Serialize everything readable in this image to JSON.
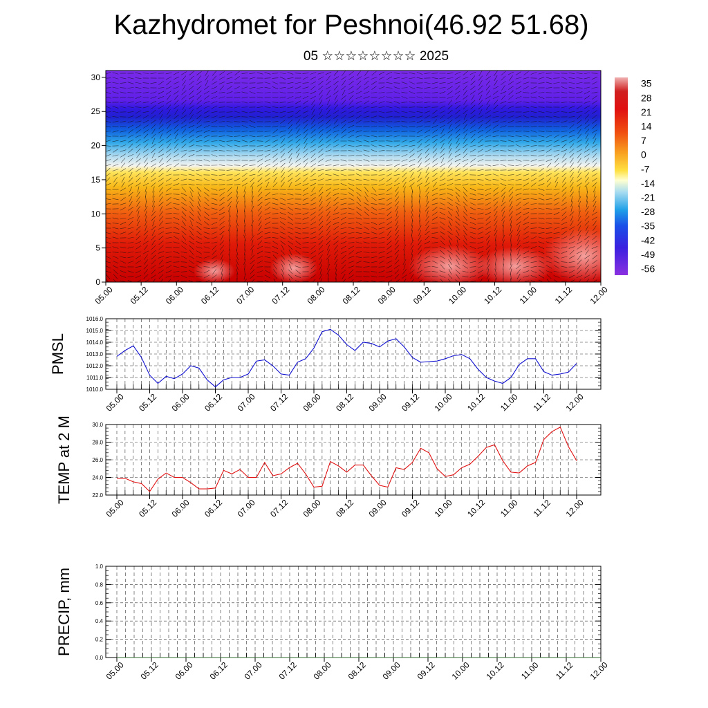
{
  "title": "Kazhydromet for Peshnoi(46.92 51.68)",
  "subtitle": "05 ☆☆☆☆☆☆☆☆ 2025",
  "time_ticks": [
    "05.00",
    "05.12",
    "06.00",
    "06.12",
    "07.00",
    "07.12",
    "08.00",
    "08.12",
    "09.00",
    "09.12",
    "10.00",
    "10.12",
    "11.00",
    "11.12",
    "12.00"
  ],
  "colors": {
    "pmsl_line": "#1010d0",
    "temp_line": "#e01010",
    "precip_line": "#2a6a2a",
    "grid": "#333333"
  },
  "chart_data": [
    {
      "type": "heatmap",
      "title": "",
      "x_ticks": [
        "05.00",
        "05.12",
        "06.00",
        "06.12",
        "07.00",
        "07.12",
        "08.00",
        "08.12",
        "09.00",
        "09.12",
        "10.00",
        "10.12",
        "11.00",
        "11.12",
        "12.00"
      ],
      "y_ticks": [
        "0",
        "5",
        "10",
        "15",
        "20",
        "25",
        "30"
      ],
      "ylim": [
        0,
        31
      ],
      "colorbar_labels": [
        "35",
        "28",
        "21",
        "14",
        "7",
        "0",
        "-7",
        "-14",
        "-21",
        "-28",
        "-35",
        "-42",
        "-49",
        "-56"
      ],
      "overlay": "wind vectors"
    },
    {
      "type": "line",
      "ylabel": "PMSL",
      "ylim": [
        1010,
        1016
      ],
      "y_ticks": [
        "1010.0",
        "1011.0",
        "1012.0",
        "1013.0",
        "1014.0",
        "1015.0",
        "1016.0"
      ],
      "x_ticks": [
        "05.00",
        "05.12",
        "06.00",
        "06.12",
        "07.00",
        "07.12",
        "08.00",
        "08.12",
        "09.00",
        "09.12",
        "10.00",
        "10.12",
        "11.00",
        "11.12",
        "12.00"
      ],
      "values": [
        1012.8,
        1013.3,
        1013.7,
        1012.7,
        1011.2,
        1010.5,
        1011.1,
        1010.9,
        1011.3,
        1012.0,
        1011.8,
        1010.8,
        1010.2,
        1010.8,
        1011.0,
        1011.0,
        1011.3,
        1012.4,
        1012.5,
        1012.0,
        1011.3,
        1011.2,
        1012.3,
        1012.6,
        1013.5,
        1014.9,
        1015.1,
        1014.6,
        1013.8,
        1013.3,
        1014.0,
        1013.9,
        1013.6,
        1014.1,
        1014.3,
        1013.6,
        1012.7,
        1012.3,
        1012.35,
        1012.4,
        1012.6,
        1012.85,
        1012.95,
        1012.6,
        1011.7,
        1011.0,
        1010.7,
        1010.5,
        1011.0,
        1012.1,
        1012.6,
        1012.6,
        1011.5,
        1011.2,
        1011.3,
        1011.45,
        1012.2
      ]
    },
    {
      "type": "line",
      "ylabel": "TEMP at 2 M",
      "ylim": [
        22,
        30
      ],
      "y_ticks": [
        "22.0",
        "24.0",
        "26.0",
        "28.0",
        "30.0"
      ],
      "x_ticks": [
        "05.00",
        "05.12",
        "06.00",
        "06.12",
        "07.00",
        "07.12",
        "08.00",
        "08.12",
        "09.00",
        "09.12",
        "10.00",
        "10.12",
        "11.00",
        "11.12",
        "12.00"
      ],
      "values": [
        23.9,
        23.9,
        23.5,
        23.3,
        22.4,
        23.8,
        24.5,
        24.0,
        24.0,
        23.4,
        22.7,
        22.7,
        22.8,
        24.8,
        24.4,
        24.9,
        24.0,
        24.0,
        25.7,
        24.2,
        24.4,
        25.1,
        25.6,
        24.4,
        22.9,
        23.0,
        25.8,
        25.3,
        24.6,
        25.4,
        25.4,
        24.2,
        23.1,
        22.9,
        25.1,
        24.9,
        25.7,
        27.3,
        26.8,
        25.0,
        24.1,
        24.3,
        25.1,
        25.5,
        26.4,
        27.4,
        27.7,
        25.9,
        24.6,
        24.5,
        25.3,
        25.7,
        28.3,
        29.2,
        29.7,
        27.5,
        25.9
      ]
    },
    {
      "type": "line",
      "ylabel": "PRECIP, mm",
      "ylim": [
        0,
        1
      ],
      "y_ticks": [
        "0.0",
        "0.2",
        "0.4",
        "0.6",
        "0.8",
        "1.0"
      ],
      "x_ticks": [
        "05.00",
        "05.12",
        "06.00",
        "06.12",
        "07.00",
        "07.12",
        "08.00",
        "08.12",
        "09.00",
        "09.12",
        "10.00",
        "10.12",
        "11.00",
        "11.12",
        "12.00"
      ],
      "values": [
        0,
        0,
        0,
        0,
        0,
        0,
        0,
        0,
        0,
        0,
        0,
        0,
        0,
        0,
        0,
        0,
        0,
        0,
        0,
        0,
        0,
        0,
        0,
        0,
        0,
        0,
        0,
        0,
        0,
        0,
        0,
        0,
        0,
        0,
        0,
        0,
        0,
        0,
        0,
        0,
        0,
        0,
        0,
        0,
        0,
        0,
        0,
        0,
        0,
        0,
        0,
        0,
        0,
        0,
        0,
        0,
        0
      ]
    }
  ]
}
